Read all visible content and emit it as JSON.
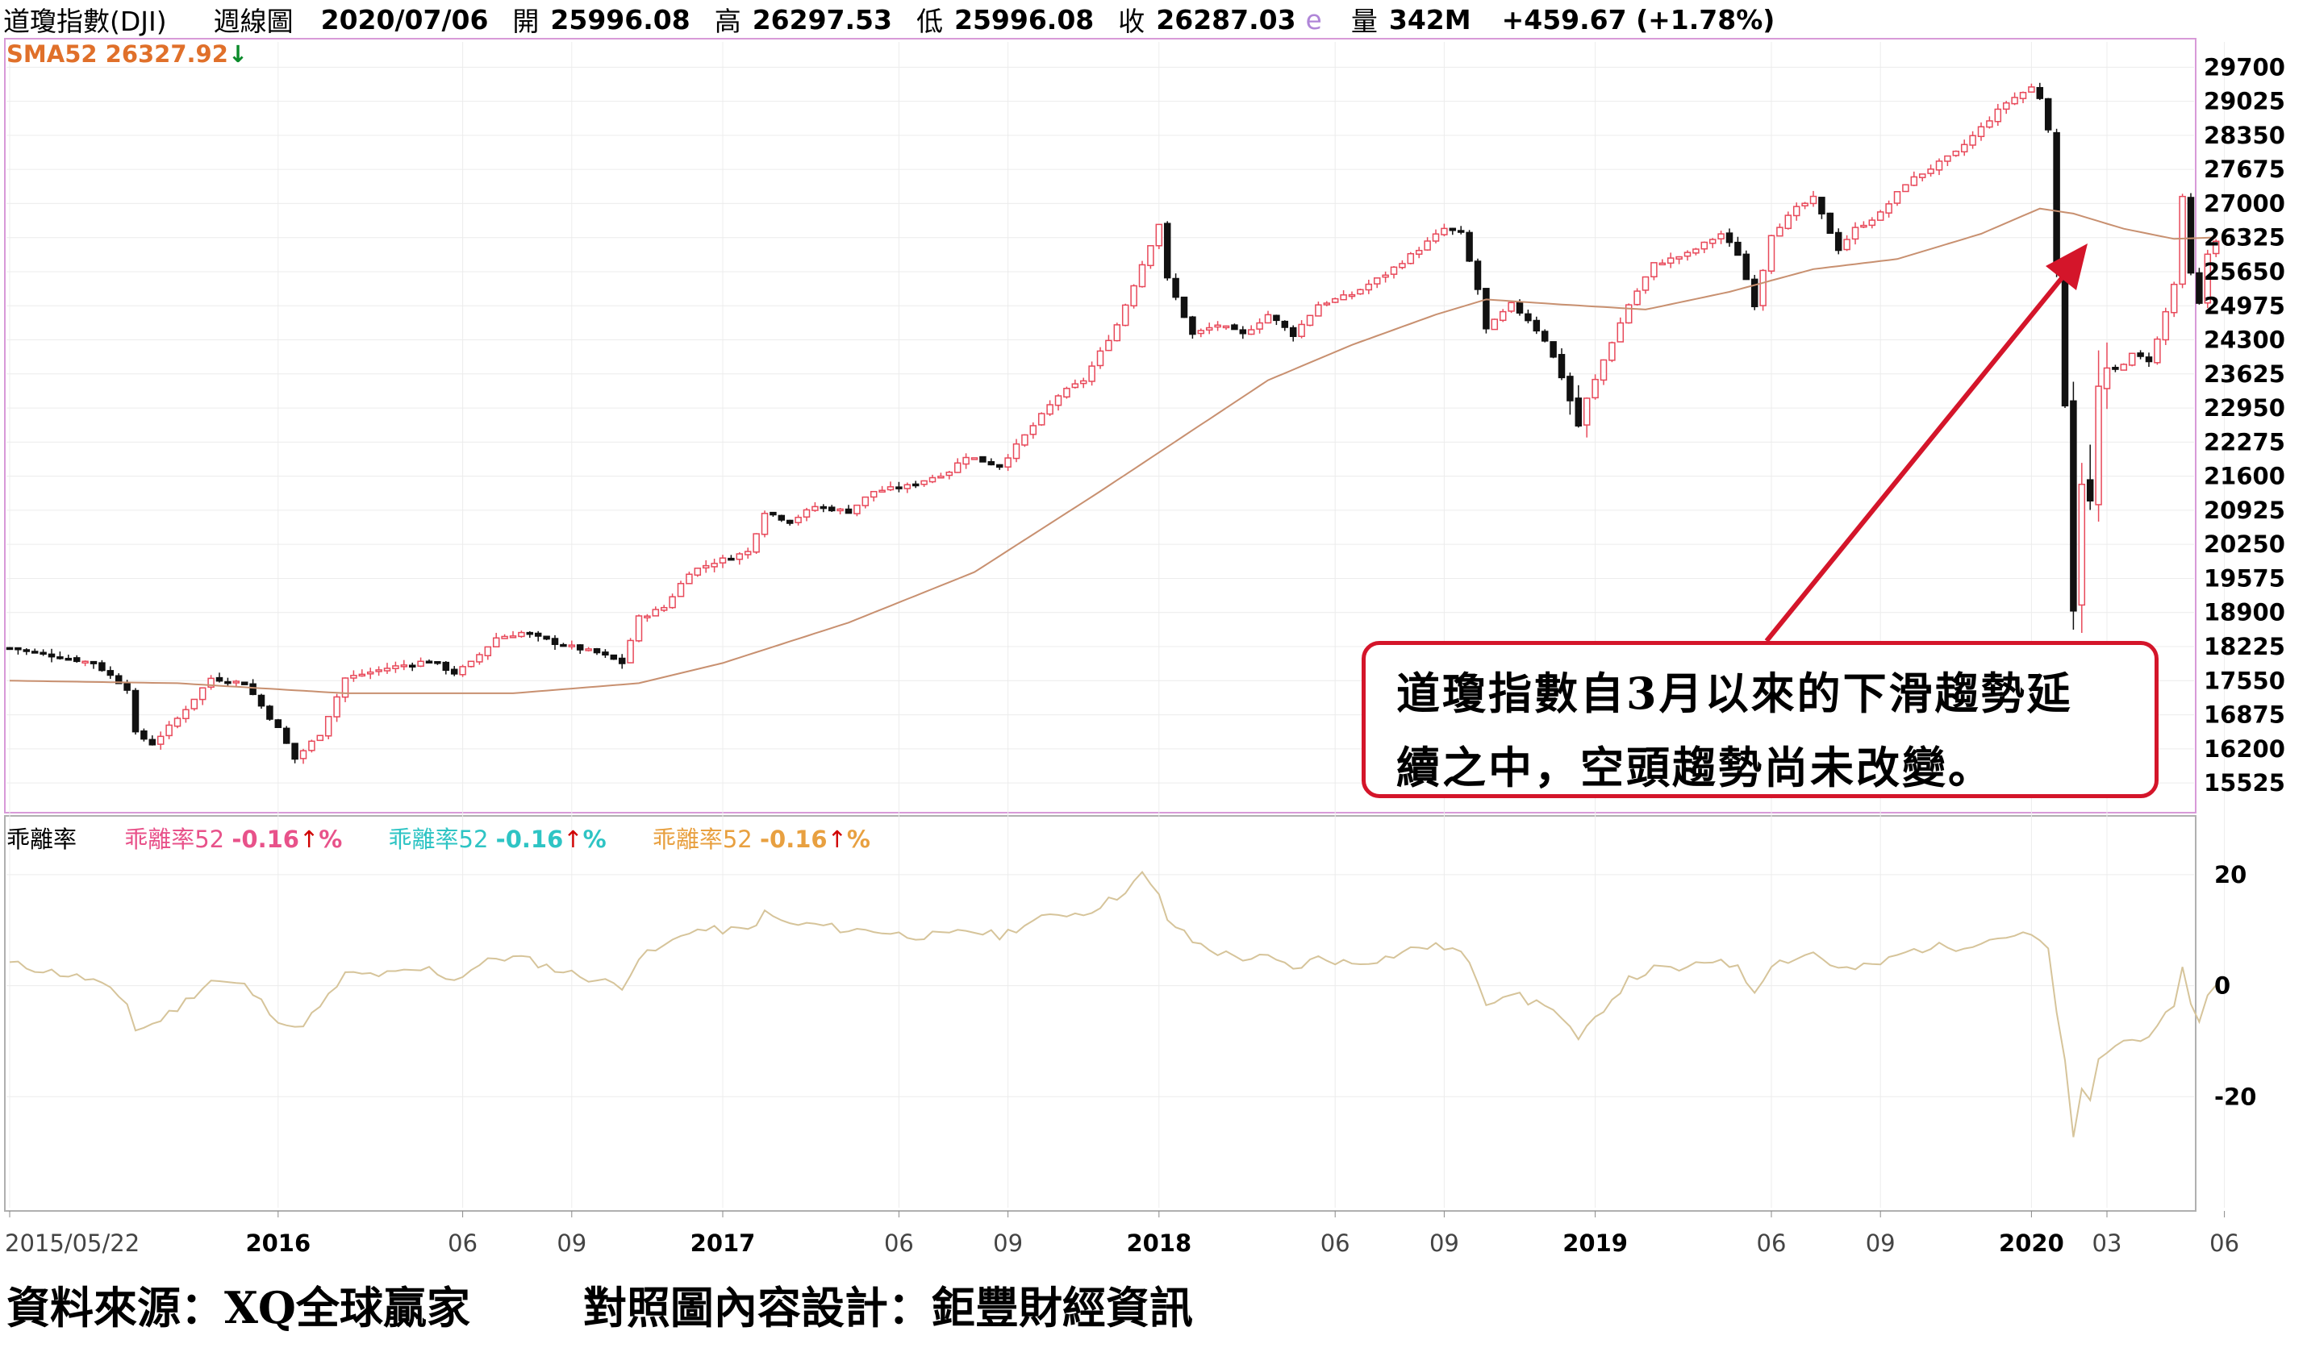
{
  "header": {
    "name": "道瓊指數(DJI)",
    "period": "週線圖",
    "date": "2020/07/06",
    "open_label": "開",
    "open": "25996.08",
    "high_label": "高",
    "high": "26297.53",
    "low_label": "低",
    "low": "25996.08",
    "close_label": "收",
    "close": "26287.03",
    "flag": "e",
    "volume_label": "量",
    "volume": "342M",
    "change": "+459.67 (+1.78%)"
  },
  "sma_label": "SMA52 26327.92",
  "oscillator": {
    "title": "乖離率",
    "items": [
      {
        "name": "乖離率52",
        "value": "-0.16",
        "unit": "%",
        "color": "#e8528a"
      },
      {
        "name": "乖離率52",
        "value": "-0.16",
        "unit": "%",
        "color": "#2ec4c4"
      },
      {
        "name": "乖離率52",
        "value": "-0.16",
        "unit": "%",
        "color": "#e8a040"
      }
    ]
  },
  "annotation": {
    "line1": "道瓊指數自3月以來的下滑趨勢延",
    "line2": "續之中，空頭趨勢尚未改變。"
  },
  "footer": {
    "source": "資料來源：XQ全球贏家",
    "design": "對照圖內容設計：鉅豐財經資訊"
  },
  "colors": {
    "up": "#e8495a",
    "down": "#111111",
    "sma": "#c89070",
    "bias": "#d6c49a",
    "callout": "#d4152a"
  },
  "chart_data": [
    {
      "type": "candlestick",
      "title": "",
      "ylim": [
        15000,
        30200
      ],
      "y_ticks": [
        29700,
        29025,
        28350,
        27675,
        27000,
        26325,
        25650,
        24975,
        24300,
        23625,
        22950,
        22275,
        21600,
        20925,
        20250,
        19575,
        18900,
        18225,
        17550,
        16875,
        16200,
        15525
      ],
      "x_tick_labels": [
        "2015/05/22",
        "2016",
        "06",
        "09",
        "2017",
        "06",
        "09",
        "2018",
        "06",
        "09",
        "2019",
        "06",
        "09",
        "2020",
        "03",
        "06"
      ],
      "x_tick_weeks": [
        0,
        32,
        54,
        67,
        85,
        106,
        119,
        137,
        158,
        171,
        189,
        210,
        223,
        241,
        250,
        264
      ],
      "weekly_close_keypoints": [
        [
          0,
          18200
        ],
        [
          10,
          17900
        ],
        [
          14,
          17400
        ],
        [
          15,
          16500
        ],
        [
          17,
          16300
        ],
        [
          20,
          16800
        ],
        [
          24,
          17600
        ],
        [
          28,
          17500
        ],
        [
          32,
          16600
        ],
        [
          34,
          16000
        ],
        [
          37,
          16500
        ],
        [
          40,
          17600
        ],
        [
          45,
          17800
        ],
        [
          50,
          17950
        ],
        [
          53,
          17700
        ],
        [
          55,
          17900
        ],
        [
          58,
          18400
        ],
        [
          61,
          18500
        ],
        [
          65,
          18300
        ],
        [
          70,
          18100
        ],
        [
          73,
          17900
        ],
        [
          75,
          18800
        ],
        [
          78,
          19000
        ],
        [
          81,
          19700
        ],
        [
          84,
          19900
        ],
        [
          88,
          20100
        ],
        [
          90,
          20900
        ],
        [
          93,
          20700
        ],
        [
          96,
          21000
        ],
        [
          100,
          20900
        ],
        [
          103,
          21300
        ],
        [
          107,
          21400
        ],
        [
          112,
          21700
        ],
        [
          114,
          22000
        ],
        [
          118,
          21800
        ],
        [
          121,
          22400
        ],
        [
          125,
          23200
        ],
        [
          128,
          23500
        ],
        [
          132,
          24600
        ],
        [
          135,
          25800
        ],
        [
          137,
          26600
        ],
        [
          138,
          25500
        ],
        [
          141,
          24400
        ],
        [
          144,
          24600
        ],
        [
          147,
          24400
        ],
        [
          150,
          24800
        ],
        [
          153,
          24400
        ],
        [
          156,
          25000
        ],
        [
          160,
          25200
        ],
        [
          164,
          25600
        ],
        [
          168,
          26100
        ],
        [
          171,
          26500
        ],
        [
          173,
          26400
        ],
        [
          175,
          25300
        ],
        [
          176,
          24500
        ],
        [
          179,
          25000
        ],
        [
          181,
          24700
        ],
        [
          183,
          24300
        ],
        [
          185,
          23600
        ],
        [
          187,
          22600
        ],
        [
          188,
          23100
        ],
        [
          190,
          23900
        ],
        [
          193,
          25000
        ],
        [
          196,
          25800
        ],
        [
          200,
          26000
        ],
        [
          204,
          26400
        ],
        [
          206,
          26000
        ],
        [
          208,
          25000
        ],
        [
          210,
          26400
        ],
        [
          213,
          26900
        ],
        [
          215,
          27100
        ],
        [
          218,
          26100
        ],
        [
          220,
          26500
        ],
        [
          223,
          26800
        ],
        [
          226,
          27400
        ],
        [
          229,
          27700
        ],
        [
          232,
          28000
        ],
        [
          235,
          28500
        ],
        [
          238,
          29000
        ],
        [
          241,
          29300
        ],
        [
          242,
          29100
        ],
        [
          243,
          28500
        ],
        [
          244,
          25400
        ],
        [
          245,
          23200
        ],
        [
          246,
          19100
        ],
        [
          247,
          21600
        ],
        [
          248,
          21000
        ],
        [
          249,
          23300
        ],
        [
          251,
          23700
        ],
        [
          253,
          24000
        ],
        [
          255,
          23900
        ],
        [
          256,
          24300
        ],
        [
          258,
          25400
        ],
        [
          259,
          27100
        ],
        [
          260,
          25600
        ],
        [
          261,
          25000
        ],
        [
          262,
          26000
        ],
        [
          263,
          26287
        ]
      ],
      "sma52_keypoints": [
        [
          0,
          17550
        ],
        [
          20,
          17500
        ],
        [
          40,
          17300
        ],
        [
          60,
          17300
        ],
        [
          75,
          17500
        ],
        [
          85,
          17900
        ],
        [
          100,
          18700
        ],
        [
          115,
          19700
        ],
        [
          130,
          21300
        ],
        [
          140,
          22400
        ],
        [
          150,
          23500
        ],
        [
          160,
          24200
        ],
        [
          170,
          24800
        ],
        [
          176,
          25100
        ],
        [
          185,
          25000
        ],
        [
          195,
          24900
        ],
        [
          205,
          25250
        ],
        [
          215,
          25700
        ],
        [
          225,
          25900
        ],
        [
          235,
          26400
        ],
        [
          242,
          26900
        ],
        [
          246,
          26800
        ],
        [
          252,
          26500
        ],
        [
          258,
          26300
        ],
        [
          263,
          26328
        ]
      ]
    },
    {
      "type": "line",
      "title": "",
      "series_name": "乖離率52",
      "ylim": [
        -40,
        30
      ],
      "y_ticks": [
        20,
        0,
        -20
      ],
      "last_value": -0.16,
      "bias_keypoints": [
        [
          0,
          4
        ],
        [
          10,
          1
        ],
        [
          14,
          -3
        ],
        [
          15,
          -8
        ],
        [
          17,
          -7
        ],
        [
          20,
          -4
        ],
        [
          24,
          1
        ],
        [
          28,
          0
        ],
        [
          32,
          -6
        ],
        [
          34,
          -8
        ],
        [
          37,
          -4
        ],
        [
          40,
          2
        ],
        [
          45,
          2
        ],
        [
          50,
          3
        ],
        [
          53,
          1
        ],
        [
          55,
          3
        ],
        [
          58,
          5
        ],
        [
          61,
          5
        ],
        [
          65,
          3
        ],
        [
          70,
          1
        ],
        [
          73,
          0
        ],
        [
          75,
          5
        ],
        [
          78,
          7
        ],
        [
          81,
          10
        ],
        [
          84,
          10
        ],
        [
          88,
          10
        ],
        [
          90,
          13
        ],
        [
          93,
          11
        ],
        [
          96,
          11
        ],
        [
          100,
          10
        ],
        [
          103,
          10
        ],
        [
          107,
          9
        ],
        [
          112,
          9
        ],
        [
          114,
          10
        ],
        [
          118,
          9
        ],
        [
          121,
          11
        ],
        [
          125,
          13
        ],
        [
          128,
          13
        ],
        [
          132,
          16
        ],
        [
          135,
          20
        ],
        [
          137,
          16
        ],
        [
          138,
          12
        ],
        [
          141,
          8
        ],
        [
          144,
          6
        ],
        [
          147,
          5
        ],
        [
          150,
          5
        ],
        [
          153,
          3
        ],
        [
          156,
          5
        ],
        [
          160,
          4
        ],
        [
          164,
          5
        ],
        [
          168,
          7
        ],
        [
          171,
          7
        ],
        [
          173,
          6
        ],
        [
          175,
          1
        ],
        [
          176,
          -3
        ],
        [
          179,
          -1
        ],
        [
          181,
          -3
        ],
        [
          183,
          -3
        ],
        [
          185,
          -6
        ],
        [
          187,
          -10
        ],
        [
          188,
          -8
        ],
        [
          190,
          -4
        ],
        [
          193,
          1
        ],
        [
          196,
          3
        ],
        [
          200,
          3
        ],
        [
          204,
          5
        ],
        [
          206,
          3
        ],
        [
          208,
          -1
        ],
        [
          210,
          4
        ],
        [
          213,
          5
        ],
        [
          215,
          6
        ],
        [
          218,
          3
        ],
        [
          220,
          3
        ],
        [
          223,
          4
        ],
        [
          226,
          6
        ],
        [
          229,
          7
        ],
        [
          232,
          7
        ],
        [
          235,
          8
        ],
        [
          238,
          9
        ],
        [
          241,
          9
        ],
        [
          242,
          8
        ],
        [
          243,
          6
        ],
        [
          244,
          -5
        ],
        [
          245,
          -13
        ],
        [
          246,
          -28
        ],
        [
          247,
          -19
        ],
        [
          248,
          -21
        ],
        [
          249,
          -13
        ],
        [
          251,
          -11
        ],
        [
          253,
          -9
        ],
        [
          255,
          -10
        ],
        [
          256,
          -8
        ],
        [
          258,
          -3
        ],
        [
          259,
          3
        ],
        [
          260,
          -3
        ],
        [
          261,
          -6
        ],
        [
          262,
          -2
        ],
        [
          263,
          -0.16
        ]
      ]
    }
  ]
}
